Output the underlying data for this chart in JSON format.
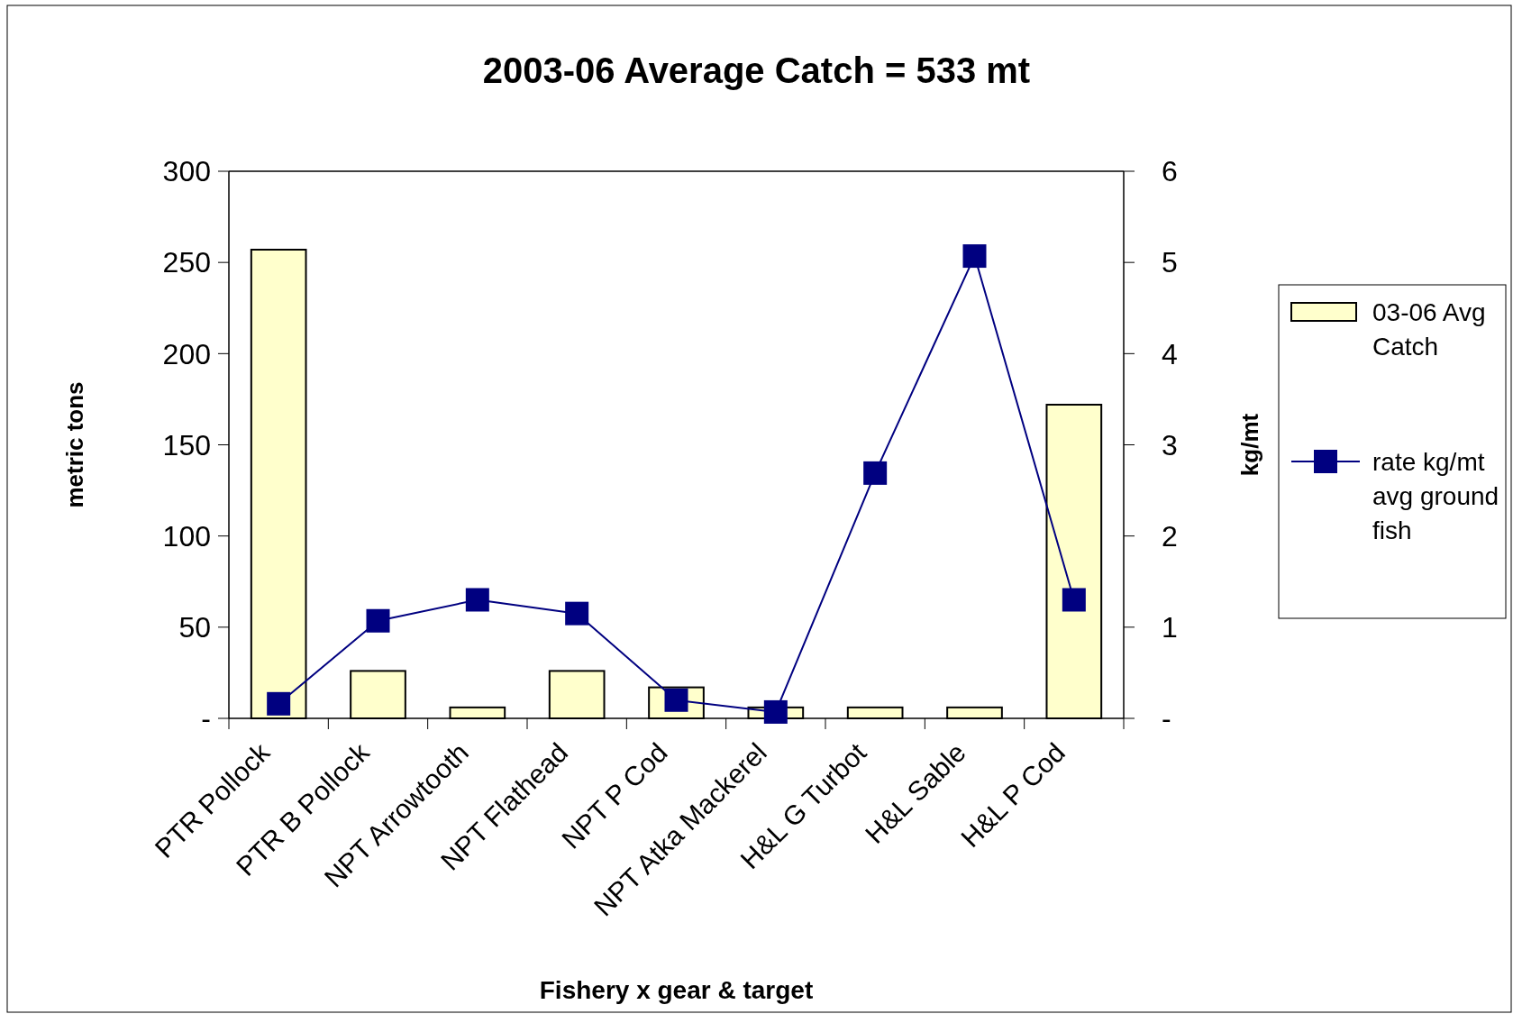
{
  "chart_data": {
    "type": "bar",
    "title": "2003-06 Average Catch = 533 mt",
    "xlabel": "Fishery x gear & target",
    "ylabel": "metric tons",
    "y2label": "kg/mt",
    "categories": [
      "PTR Pollock",
      "PTR B Pollock",
      "NPT Arrowtooth",
      "NPT Flathead",
      "NPT P Cod",
      "NPT Atka Mackerel",
      "H&L G Turbot",
      "H&L Sable",
      "H&L P Cod"
    ],
    "series": [
      {
        "name": "03-06 Avg Catch",
        "color": "#ffffcc",
        "values": [
          257,
          26,
          6,
          26,
          17,
          6,
          6,
          6,
          172
        ]
      },
      {
        "name": "rate kg/mt avg ground fish",
        "type": "line",
        "axis": "y2",
        "color": "#000080",
        "values": [
          0.16,
          1.07,
          1.3,
          1.15,
          0.2,
          0.07,
          2.69,
          5.07,
          1.3
        ]
      }
    ],
    "ylim": [
      0,
      300
    ],
    "yticks": [
      {
        "value": 0,
        "label": "-"
      },
      50,
      100,
      150,
      200,
      250,
      300
    ],
    "y2lim": [
      0,
      6
    ],
    "y2ticks": [
      {
        "value": 0,
        "label": "-"
      },
      1,
      2,
      3,
      4,
      5,
      6
    ],
    "legend": "right",
    "marker": "square",
    "grid": false
  }
}
